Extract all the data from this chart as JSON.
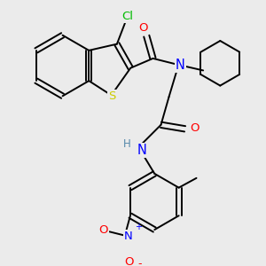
{
  "bg_color": "#ebebeb",
  "atom_colors": {
    "C": "#000000",
    "N": "#0000ff",
    "O": "#ff0000",
    "S": "#cccc00",
    "Cl": "#00bb00",
    "H": "#5588aa"
  },
  "lw": 1.4,
  "fs": 8.5
}
